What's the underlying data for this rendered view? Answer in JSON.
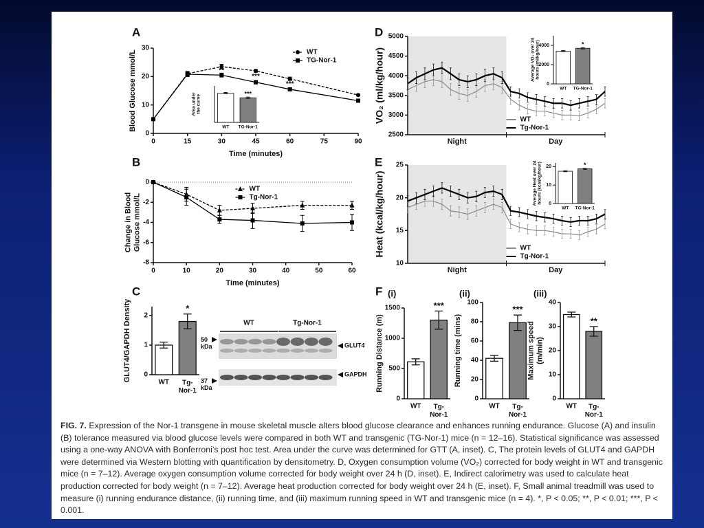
{
  "chart_data": [
    {
      "panel": "A",
      "type": "line",
      "x": [
        0,
        15,
        30,
        45,
        60,
        90
      ],
      "xlim": [
        0,
        90
      ],
      "xticks": [
        0,
        15,
        30,
        45,
        60,
        75,
        90
      ],
      "ylim": [
        0,
        30
      ],
      "yticks": [
        0,
        10,
        20,
        30
      ],
      "xlabel": "Time (minutes)",
      "ylabel": "Blood Glucose mmol/L",
      "legend": "upper right",
      "series": [
        {
          "name": "WT",
          "color": "#000000",
          "dash": true,
          "marker": "circle",
          "values": [
            5,
            21,
            23.5,
            22,
            19.2,
            13.5
          ],
          "errors": [
            0.3,
            0.8,
            0.8,
            0.5,
            0.6,
            0.3
          ]
        },
        {
          "name": "TG-Nor-1",
          "color": "#000000",
          "dash": false,
          "marker": "square",
          "values": [
            5,
            20.8,
            20.5,
            18,
            15.5,
            11.5
          ],
          "errors": [
            0.3,
            0.8,
            0.7,
            0.6,
            0.5,
            0.3
          ]
        }
      ],
      "annotations": [
        {
          "x": 30,
          "text": "**"
        },
        {
          "x": 45,
          "text": "***"
        },
        {
          "x": 60,
          "text": "***"
        }
      ],
      "inset": {
        "type": "bar",
        "categories": [
          "WT",
          "TG-Nor-1"
        ],
        "values": [
          1600,
          1350
        ],
        "errors": [
          40,
          40
        ],
        "colors": [
          "#ffffff",
          "#808080"
        ],
        "ylim": [
          0,
          2000
        ],
        "ylabel": "Area under\nthe curve",
        "significance": "***"
      }
    },
    {
      "panel": "B",
      "type": "line",
      "x": [
        0,
        10,
        20,
        30,
        45,
        60
      ],
      "xlim": [
        0,
        60
      ],
      "xticks": [
        0,
        10,
        20,
        30,
        40,
        50,
        60
      ],
      "ylim": [
        -8,
        0
      ],
      "yticks": [
        0,
        -2,
        -4,
        -6,
        -8
      ],
      "xlabel": "Time  (minutes)",
      "ylabel": "Change in Blood\nGlucose mmol/L",
      "legend": "upper center",
      "zero_line": true,
      "series": [
        {
          "name": "WT",
          "color": "#000000",
          "dash": true,
          "marker": "triangle",
          "values": [
            0,
            -1.2,
            -2.8,
            -2.6,
            -2.3,
            -2.3
          ],
          "errors": [
            0.05,
            0.7,
            0.5,
            0.5,
            0.4,
            0.4
          ]
        },
        {
          "name": "Tg-Nor-1",
          "color": "#000000",
          "dash": false,
          "marker": "square",
          "values": [
            0,
            -1.5,
            -3.7,
            -3.8,
            -4.1,
            -4.0
          ],
          "errors": [
            0.05,
            0.8,
            0.4,
            0.8,
            0.8,
            0.8
          ]
        }
      ]
    },
    {
      "panel": "C",
      "type": "bar",
      "categories": [
        "WT",
        "Tg-\nNor-1"
      ],
      "values": [
        1.0,
        1.8
      ],
      "errors": [
        0.1,
        0.25
      ],
      "colors": [
        "#ffffff",
        "#808080"
      ],
      "ylim": [
        0,
        2.3
      ],
      "yticks": [
        0,
        1,
        2
      ],
      "ylabel": "GLUT4/GAPDH Density",
      "significance": "*",
      "blot": {
        "groups": [
          "WT",
          "Tg-Nor-1"
        ],
        "markers": [
          "50\nkDa",
          "37\nkDa"
        ],
        "bands": [
          "GLUT4",
          "GAPDH"
        ]
      }
    },
    {
      "panel": "D",
      "type": "line",
      "periods": [
        "Night",
        "Day"
      ],
      "shading": true,
      "ylim": [
        2500,
        5000
      ],
      "yticks": [
        2500,
        3000,
        3500,
        4000,
        4500,
        5000
      ],
      "ylabel": "VO₂ (ml/kg/hour)",
      "legend": "lower center",
      "series": [
        {
          "name": "WT",
          "color": "#8a8a8a",
          "dash": false,
          "values": [
            3650,
            3750,
            3850,
            3900,
            3850,
            3650,
            3550,
            3500,
            3600,
            3750,
            3800,
            3700,
            3400,
            3250,
            3150,
            3100,
            3100,
            3050,
            3000,
            3000,
            2980,
            3050,
            3150,
            3300
          ],
          "errors": [
            150,
            150,
            150,
            150,
            150,
            150,
            150,
            150,
            150,
            150,
            150,
            150,
            120,
            120,
            120,
            120,
            120,
            120,
            120,
            120,
            120,
            120,
            120,
            120
          ]
        },
        {
          "name": "Tg-Nor-1",
          "color": "#000000",
          "dash": false,
          "values": [
            3800,
            3950,
            4050,
            4150,
            4200,
            4050,
            3900,
            3850,
            3900,
            4000,
            4050,
            3950,
            3600,
            3550,
            3450,
            3400,
            3350,
            3300,
            3300,
            3250,
            3300,
            3350,
            3400,
            3600
          ],
          "errors": [
            150,
            150,
            150,
            150,
            150,
            150,
            150,
            150,
            150,
            150,
            150,
            150,
            120,
            120,
            120,
            120,
            120,
            120,
            120,
            120,
            120,
            120,
            120,
            120
          ]
        }
      ],
      "inset": {
        "type": "bar",
        "categories": [
          "WT",
          "TG-Nor-1"
        ],
        "values": [
          3400,
          3700
        ],
        "errors": [
          60,
          80
        ],
        "colors": [
          "#ffffff",
          "#808080"
        ],
        "ylim": [
          0,
          5000
        ],
        "yticks": [
          0,
          2000,
          4000
        ],
        "ylabel": "Average VO₂ over 24\nhours (ml/kg/hour)",
        "significance": "*"
      }
    },
    {
      "panel": "E",
      "type": "line",
      "periods": [
        "Night",
        "Day"
      ],
      "shading": true,
      "ylim": [
        10,
        25
      ],
      "yticks": [
        10,
        15,
        20,
        25
      ],
      "ylabel": "Heat (kcal/kg/hour)",
      "legend": "lower center",
      "series": [
        {
          "name": "WT",
          "color": "#8a8a8a",
          "dash": false,
          "values": [
            18.5,
            19,
            19.5,
            19.5,
            19,
            18,
            17.8,
            17.5,
            18,
            18.5,
            19,
            18.5,
            16,
            15.5,
            15.2,
            15,
            15,
            14.8,
            14.5,
            14.5,
            14.3,
            14.8,
            15.2,
            16
          ],
          "errors": [
            0.8,
            0.8,
            0.8,
            0.8,
            0.8,
            0.8,
            0.8,
            0.8,
            0.8,
            0.8,
            0.8,
            0.8,
            0.7,
            0.7,
            0.7,
            0.7,
            0.7,
            0.7,
            0.7,
            0.7,
            0.7,
            0.7,
            0.7,
            0.7
          ]
        },
        {
          "name": "Tg-Nor-1",
          "color": "#000000",
          "dash": false,
          "values": [
            19.5,
            20,
            20.5,
            21,
            21.5,
            21,
            20.5,
            20,
            20.2,
            20.8,
            21,
            20.5,
            18,
            17.8,
            17.5,
            17.2,
            17,
            16.8,
            16.5,
            16.3,
            16.5,
            16.5,
            16.8,
            17.5
          ],
          "errors": [
            0.8,
            0.8,
            0.8,
            0.8,
            0.8,
            0.8,
            0.8,
            0.8,
            0.8,
            0.8,
            0.8,
            0.8,
            0.7,
            0.7,
            0.7,
            0.7,
            0.7,
            0.7,
            0.7,
            0.7,
            0.7,
            0.7,
            0.7,
            0.7
          ]
        }
      ],
      "inset": {
        "type": "bar",
        "categories": [
          "WT",
          "TG-Nor-1"
        ],
        "values": [
          17.5,
          18.8
        ],
        "errors": [
          0.3,
          0.4
        ],
        "colors": [
          "#ffffff",
          "#808080"
        ],
        "ylim": [
          0,
          22
        ],
        "yticks": [
          0,
          10,
          20
        ],
        "ylabel": "Average Heat over 24\nhours (kcal/kg/hour)",
        "significance": "*"
      }
    },
    {
      "panel": "F",
      "sublabel": "(i)",
      "type": "bar",
      "categories": [
        "WT",
        "Tg-\nNor-1"
      ],
      "values": [
        610,
        1300
      ],
      "errors": [
        50,
        150
      ],
      "colors": [
        "#ffffff",
        "#808080"
      ],
      "ylim": [
        0,
        1500
      ],
      "yticks": [
        0,
        500,
        1000,
        1500
      ],
      "ylabel": "Running Distance (m)",
      "significance": "***"
    },
    {
      "sublabel": "(ii)",
      "type": "bar",
      "categories": [
        "WT",
        "Tg-\nNor-1"
      ],
      "values": [
        42,
        79
      ],
      "errors": [
        3,
        8
      ],
      "colors": [
        "#ffffff",
        "#808080"
      ],
      "ylim": [
        0,
        100
      ],
      "yticks": [
        0,
        20,
        40,
        60,
        80,
        100
      ],
      "ylabel": "Running time (mins)",
      "significance": "***"
    },
    {
      "sublabel": "(iii)",
      "type": "bar",
      "categories": [
        "WT",
        "Tg-\nNor-1"
      ],
      "values": [
        35,
        28
      ],
      "errors": [
        1,
        2
      ],
      "colors": [
        "#ffffff",
        "#808080"
      ],
      "ylim": [
        0,
        40
      ],
      "yticks": [
        0,
        10,
        20,
        30,
        40
      ],
      "ylabel": "Maximum speed\n(m/min)",
      "significance": "**"
    }
  ],
  "caption": {
    "label": "FIG. 7.",
    "text": "Expression of the Nor-1 transgene in mouse skeletal muscle alters blood glucose clearance and enhances running endurance. Glucose (A) and insulin (B) tolerance measured via blood glucose levels were compared in both WT and transgenic (TG-Nor-1) mice (n = 12–16). Statistical significance was assessed using a one-way ANOVA with Bonferroni’s post hoc test. Area under the curve was determined for GTT (A, inset). C, The protein levels of GLUT4 and GAPDH were determined via Western blotting with quantification by densitometry. D, Oxygen consumption volume (VO₂) corrected for body weight in WT and transgenic mice (n = 7–12). Average oxygen consumption volume corrected for body weight over 24 h (D, inset). E, Indirect calorimetry was used to calculate heat production corrected for body weight (n = 7–12). Average heat production corrected for body weight over 24 h (E, inset). F, Small animal treadmill was used to measure (i) running endurance distance, (ii) running time, and (iii) maximum running speed in WT and transgenic mice (n = 4). *, P < 0.05; **, P < 0.01; ***, P < 0.001."
  }
}
